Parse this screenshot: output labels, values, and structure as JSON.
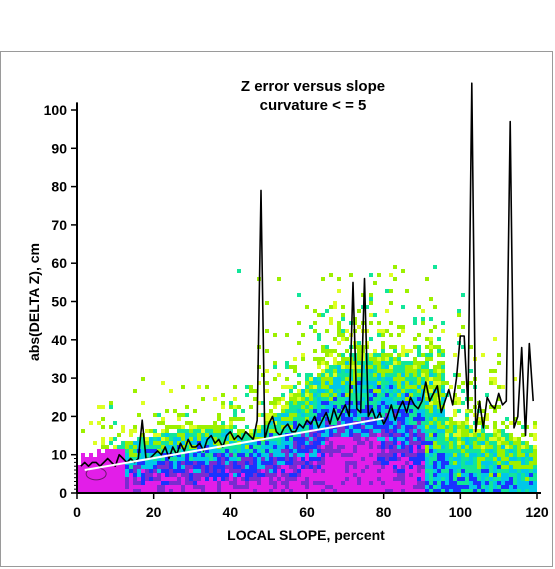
{
  "chart_data": {
    "type": "scatter",
    "title": "Z error versus slope",
    "subtitle": "curvature < = 5",
    "xlabel": "LOCAL SLOPE, percent",
    "ylabel": "abs(DELTA Z), cm",
    "xlim": [
      0,
      120
    ],
    "ylim": [
      0,
      105
    ],
    "x_ticks": [
      0,
      20,
      40,
      60,
      80,
      100,
      120
    ],
    "y_ticks": [
      0,
      10,
      20,
      30,
      40,
      50,
      60,
      70,
      80,
      90,
      100
    ],
    "density_colors": [
      "#ddff22",
      "#9cf000",
      "#11e69a",
      "#00c8e8",
      "#1a33ff",
      "#7a2cd0",
      "#e21ee8"
    ],
    "series": [
      {
        "style": "black-line",
        "x": [
          1,
          2,
          3,
          4,
          5,
          6,
          7,
          8,
          9,
          10,
          11,
          12,
          13,
          14,
          15,
          16,
          17,
          18,
          19,
          20,
          21,
          22,
          23,
          24,
          25,
          26,
          27,
          28,
          29,
          30,
          31,
          32,
          33,
          34,
          35,
          36,
          37,
          38,
          39,
          40,
          41,
          42,
          43,
          44,
          45,
          46,
          47,
          48,
          49,
          50,
          51,
          52,
          53,
          54,
          55,
          56,
          57,
          58,
          59,
          60,
          61,
          62,
          63,
          64,
          65,
          66,
          67,
          68,
          69,
          70,
          71,
          72,
          73,
          74,
          75,
          76,
          77,
          78,
          79,
          80,
          81,
          82,
          83,
          84,
          85,
          86,
          87,
          88,
          89,
          90,
          91,
          92,
          93,
          94,
          95,
          96,
          97,
          98,
          99,
          100,
          101,
          102,
          103,
          104,
          105,
          106,
          107,
          108,
          109,
          110,
          111,
          112,
          113,
          114,
          115,
          116,
          117,
          118,
          119
        ],
        "y": [
          7,
          8,
          7,
          8,
          8,
          7,
          8,
          9,
          8,
          7,
          10,
          9,
          8,
          9,
          8,
          9,
          19,
          9,
          9,
          10,
          11,
          10,
          12,
          9,
          12,
          10,
          13,
          11,
          14,
          12,
          12,
          13,
          11,
          14,
          15,
          13,
          14,
          12,
          15,
          16,
          14,
          15,
          14,
          16,
          15,
          14,
          19,
          79,
          14,
          18,
          20,
          16,
          15,
          17,
          18,
          16,
          16,
          18,
          17,
          19,
          18,
          20,
          17,
          19,
          21,
          18,
          22,
          19,
          21,
          23,
          20,
          55,
          22,
          21,
          56,
          20,
          22,
          19,
          21,
          18,
          20,
          23,
          19,
          22,
          24,
          21,
          25,
          23,
          22,
          24,
          29,
          24,
          26,
          28,
          21,
          24,
          27,
          23,
          30,
          41,
          41,
          22,
          107,
          16,
          24,
          17,
          25,
          23,
          22,
          26,
          23,
          24,
          97,
          17,
          20,
          38,
          15,
          39,
          24
        ]
      },
      {
        "style": "white-line",
        "x": [
          2,
          80
        ],
        "y": [
          6,
          19.5
        ]
      }
    ]
  }
}
